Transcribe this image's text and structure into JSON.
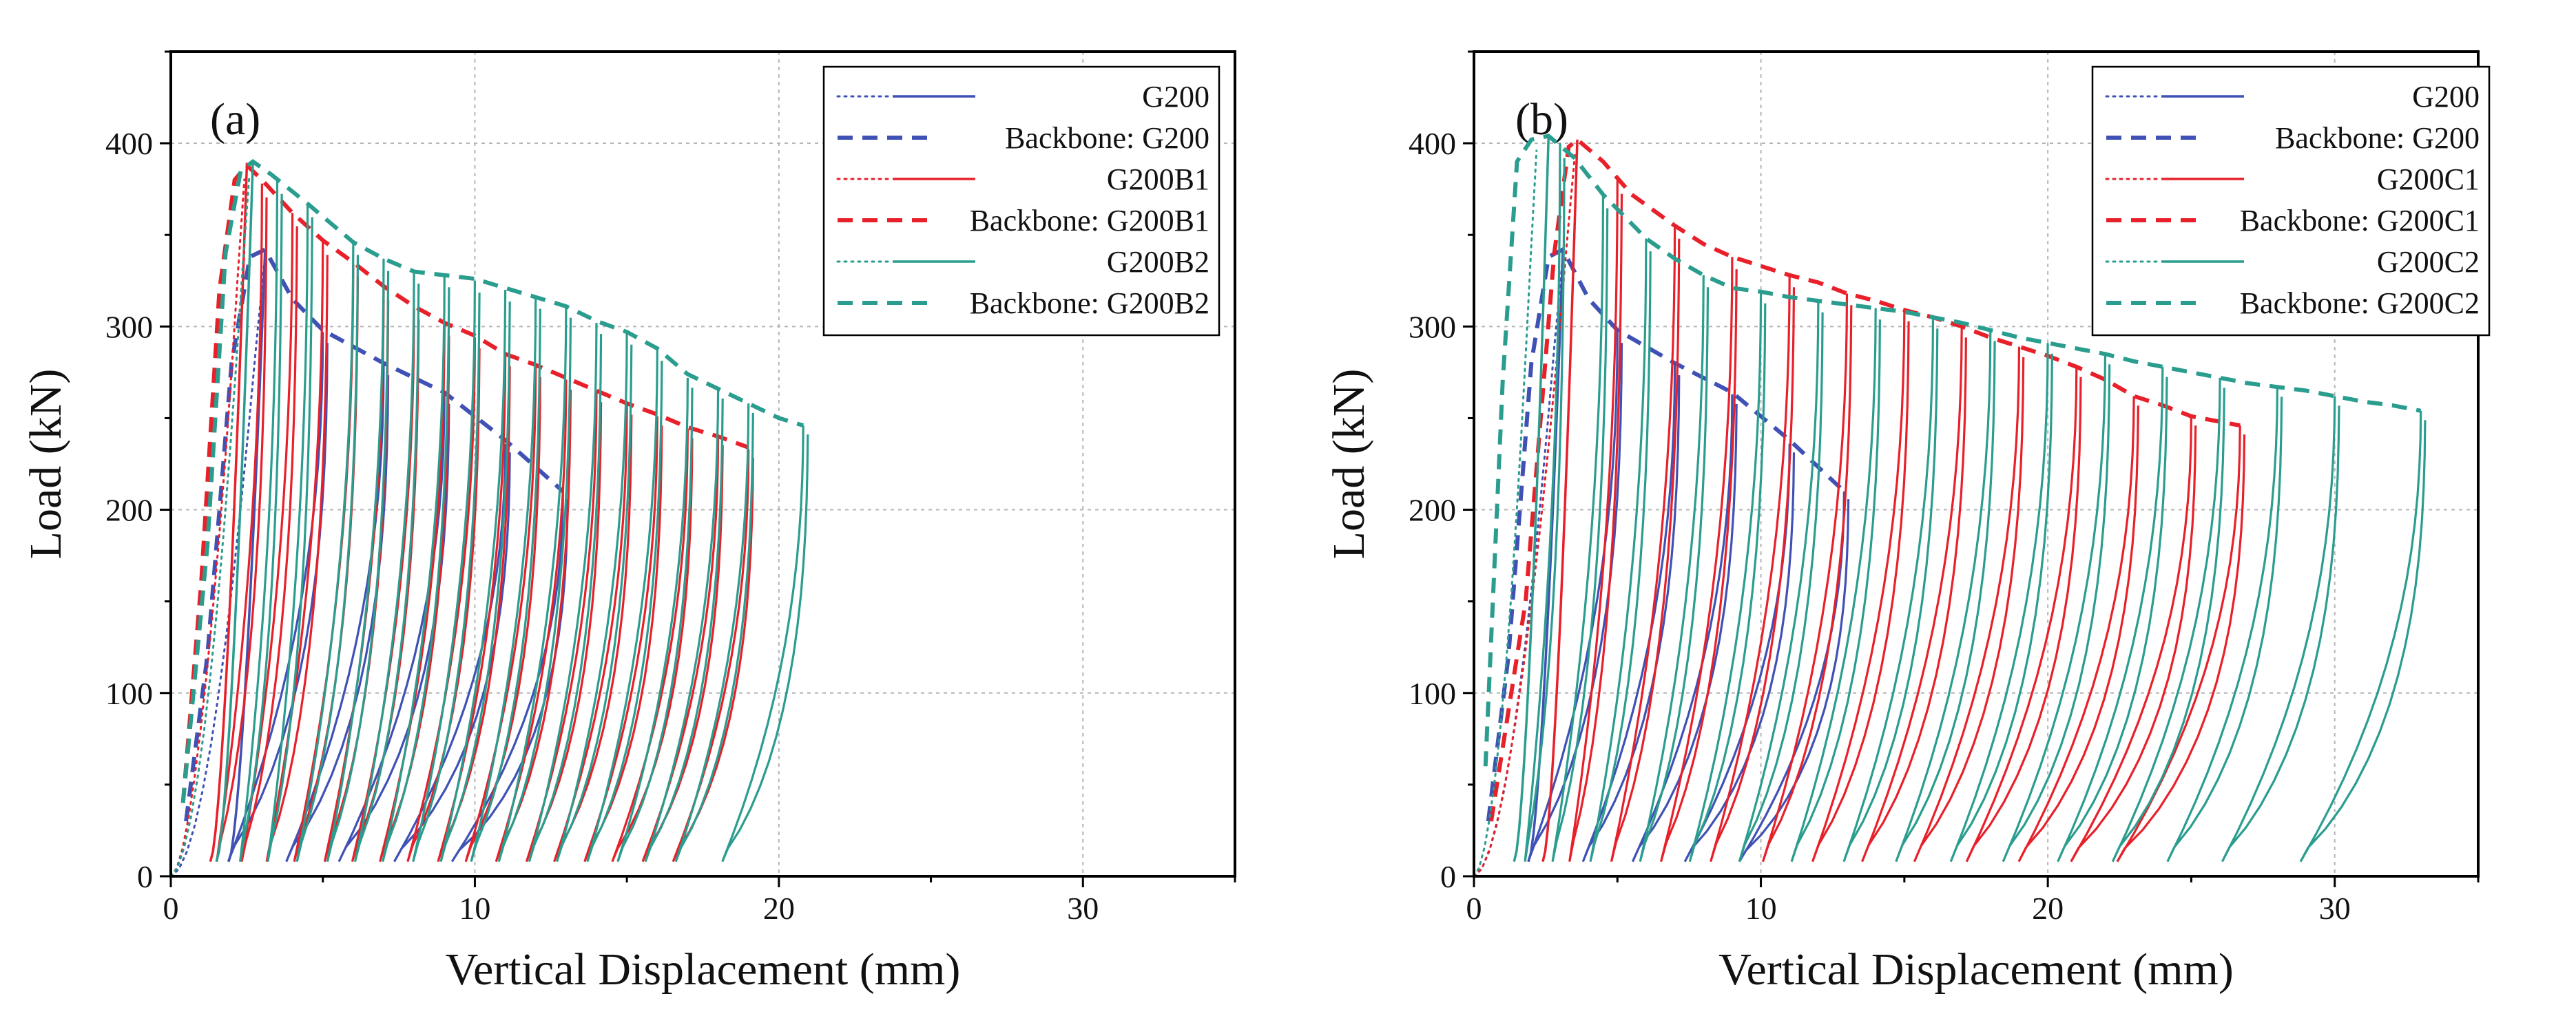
{
  "chart_data": [
    {
      "type": "line",
      "panel_label": "(a)",
      "xlabel": "Vertical Displacement (mm)",
      "ylabel": "Load (kN)",
      "xlim": [
        0,
        35
      ],
      "ylim": [
        0,
        450
      ],
      "xticks": [
        0,
        10,
        20,
        30
      ],
      "yticks": [
        0,
        100,
        200,
        300,
        400
      ],
      "grid": true,
      "legend_position": "top-right",
      "legend": [
        "G200",
        "Backbone: G200",
        "G200B1",
        "Backbone: G200B1",
        "G200B2",
        "Backbone: G200B2"
      ],
      "series": [
        {
          "name": "G200",
          "color": "#3f51b5",
          "monotonic_style": "dotted",
          "initial_max_disp": 3.1,
          "backbone": [
            [
              0.5,
              30
            ],
            [
              1.2,
              120
            ],
            [
              2.0,
              280
            ],
            [
              2.6,
              338
            ],
            [
              3.1,
              342
            ],
            [
              4.0,
              315
            ],
            [
              5.0,
              298
            ],
            [
              7.0,
              280
            ],
            [
              9.0,
              264
            ],
            [
              11.0,
              238
            ],
            [
              12.9,
              210
            ]
          ],
          "cycles": [
            {
              "d": 5.0,
              "load": 297,
              "end": 1.6
            },
            {
              "d": 7.0,
              "load": 279,
              "end": 3.5
            },
            {
              "d": 9.0,
              "load": 263,
              "end": 5.2
            },
            {
              "d": 11.0,
              "load": 236,
              "end": 7.0
            },
            {
              "d": 12.9,
              "load": 210,
              "end": 8.9
            }
          ]
        },
        {
          "name": "G200B1",
          "color": "#e8202a",
          "monotonic_style": "dotted",
          "initial_max_disp": 2.4,
          "backbone": [
            [
              0.4,
              40
            ],
            [
              1.0,
              160
            ],
            [
              1.6,
              320
            ],
            [
              2.1,
              380
            ],
            [
              2.5,
              388
            ],
            [
              3.0,
              380
            ],
            [
              4.0,
              362
            ],
            [
              5.0,
              347
            ],
            [
              6.0,
              335
            ],
            [
              7.0,
              322
            ],
            [
              8.0,
              311
            ],
            [
              9.0,
              302
            ],
            [
              10.0,
              295
            ],
            [
              11.0,
              285
            ],
            [
              12.0,
              279
            ],
            [
              13.0,
              272
            ],
            [
              14.0,
              265
            ],
            [
              15.0,
              258
            ],
            [
              16.0,
              252
            ],
            [
              17.0,
              245
            ],
            [
              18.0,
              240
            ],
            [
              19.0,
              234
            ]
          ],
          "cycles": [
            {
              "d": 3.0,
              "load": 378,
              "end": 1.4
            },
            {
              "d": 4.0,
              "load": 362,
              "end": 2.2
            },
            {
              "d": 5.0,
              "load": 346,
              "end": 3.0
            },
            {
              "d": 6.0,
              "load": 334,
              "end": 3.9
            },
            {
              "d": 7.0,
              "load": 321,
              "end": 4.9
            },
            {
              "d": 8.0,
              "load": 310,
              "end": 5.8
            },
            {
              "d": 9.0,
              "load": 301,
              "end": 6.7
            },
            {
              "d": 10.0,
              "load": 294,
              "end": 7.6
            },
            {
              "d": 11.0,
              "load": 284,
              "end": 8.6
            },
            {
              "d": 12.0,
              "load": 278,
              "end": 9.5
            },
            {
              "d": 13.0,
              "load": 271,
              "end": 10.5
            },
            {
              "d": 14.0,
              "load": 264,
              "end": 11.5
            },
            {
              "d": 15.0,
              "load": 257,
              "end": 12.4
            },
            {
              "d": 16.0,
              "load": 251,
              "end": 13.4
            },
            {
              "d": 17.0,
              "load": 244,
              "end": 14.3
            },
            {
              "d": 18.0,
              "load": 240,
              "end": 15.3
            },
            {
              "d": 19.0,
              "load": 233,
              "end": 16.3
            }
          ]
        },
        {
          "name": "G200B2",
          "color": "#2a9d8f",
          "monotonic_style": "dotted",
          "initial_max_disp": 2.6,
          "backbone": [
            [
              0.4,
              40
            ],
            [
              1.2,
              180
            ],
            [
              1.8,
              340
            ],
            [
              2.3,
              385
            ],
            [
              2.7,
              390
            ],
            [
              3.3,
              383
            ],
            [
              4.5,
              367
            ],
            [
              6.0,
              346
            ],
            [
              7.0,
              337
            ],
            [
              8.0,
              330
            ],
            [
              9.0,
              328
            ],
            [
              10.0,
              326
            ],
            [
              11.0,
              321
            ],
            [
              12.0,
              316
            ],
            [
              13.0,
              311
            ],
            [
              14.0,
              303
            ],
            [
              15.0,
              297
            ],
            [
              16.0,
              288
            ],
            [
              17.0,
              274
            ],
            [
              18.0,
              266
            ],
            [
              19.0,
              258
            ],
            [
              20.0,
              250
            ],
            [
              20.8,
              246
            ]
          ],
          "cycles": [
            {
              "d": 3.5,
              "load": 380,
              "end": 2.2
            },
            {
              "d": 4.5,
              "load": 367,
              "end": 3.1
            },
            {
              "d": 6.0,
              "load": 346,
              "end": 4.0
            },
            {
              "d": 7.0,
              "load": 337,
              "end": 5.0
            },
            {
              "d": 8.0,
              "load": 330,
              "end": 5.9
            },
            {
              "d": 9.0,
              "load": 328,
              "end": 6.8
            },
            {
              "d": 10.0,
              "load": 325,
              "end": 7.8
            },
            {
              "d": 11.0,
              "load": 320,
              "end": 8.7
            },
            {
              "d": 12.0,
              "load": 316,
              "end": 9.7
            },
            {
              "d": 13.0,
              "load": 311,
              "end": 10.6
            },
            {
              "d": 14.0,
              "load": 302,
              "end": 11.6
            },
            {
              "d": 15.0,
              "load": 296,
              "end": 12.5
            },
            {
              "d": 16.0,
              "load": 287,
              "end": 13.5
            },
            {
              "d": 17.0,
              "load": 272,
              "end": 14.5
            },
            {
              "d": 18.0,
              "load": 266,
              "end": 15.4
            },
            {
              "d": 19.0,
              "load": 258,
              "end": 16.4
            },
            {
              "d": 20.8,
              "load": 246,
              "end": 17.9
            }
          ]
        }
      ]
    },
    {
      "type": "line",
      "panel_label": "(b)",
      "xlabel": "Vertical Displacement (mm)",
      "ylabel": "Load (kN)",
      "xlim": [
        0,
        35
      ],
      "ylim": [
        0,
        450
      ],
      "xticks": [
        0,
        10,
        20,
        30
      ],
      "yticks": [
        0,
        100,
        200,
        300,
        400
      ],
      "grid": true,
      "legend_position": "top-right",
      "legend": [
        "G200",
        "Backbone: G200",
        "G200C1",
        "Backbone: G200C1",
        "G200C2",
        "Backbone: G200C2"
      ],
      "series": [
        {
          "name": "G200",
          "color": "#3f51b5",
          "monotonic_style": "dotted",
          "initial_max_disp": 3.1,
          "backbone": [
            [
              0.5,
              30
            ],
            [
              1.2,
              120
            ],
            [
              2.0,
              280
            ],
            [
              2.6,
              338
            ],
            [
              3.1,
              342
            ],
            [
              4.0,
              315
            ],
            [
              5.0,
              298
            ],
            [
              7.0,
              280
            ],
            [
              9.0,
              264
            ],
            [
              11.0,
              238
            ],
            [
              12.9,
              210
            ]
          ],
          "cycles": [
            {
              "d": 5.0,
              "load": 297,
              "end": 1.6
            },
            {
              "d": 7.0,
              "load": 279,
              "end": 3.5
            },
            {
              "d": 9.0,
              "load": 263,
              "end": 5.2
            },
            {
              "d": 11.0,
              "load": 236,
              "end": 7.0
            },
            {
              "d": 12.9,
              "load": 210,
              "end": 8.9
            }
          ]
        },
        {
          "name": "G200C1",
          "color": "#e8202a",
          "monotonic_style": "dotted",
          "initial_max_disp": 3.5,
          "backbone": [
            [
              0.6,
              30
            ],
            [
              1.8,
              150
            ],
            [
              2.8,
              340
            ],
            [
              3.3,
              398
            ],
            [
              3.6,
              402
            ],
            [
              4.5,
              390
            ],
            [
              5.5,
              372
            ],
            [
              7.0,
              355
            ],
            [
              8.0,
              345
            ],
            [
              9.0,
              338
            ],
            [
              10.0,
              333
            ],
            [
              11.0,
              328
            ],
            [
              12.0,
              324
            ],
            [
              13.0,
              318
            ],
            [
              14.0,
              314
            ],
            [
              15.0,
              309
            ],
            [
              16.0,
              305
            ],
            [
              17.0,
              300
            ],
            [
              18.0,
              294
            ],
            [
              19.0,
              289
            ],
            [
              20.0,
              284
            ],
            [
              21.0,
              278
            ],
            [
              22.0,
              271
            ],
            [
              23.0,
              262
            ],
            [
              24.0,
              257
            ],
            [
              25.0,
              251
            ],
            [
              26.7,
              246
            ]
          ],
          "cycles": [
            {
              "d": 5.0,
              "load": 380,
              "end": 3.2
            },
            {
              "d": 7.0,
              "load": 355,
              "end": 4.6
            },
            {
              "d": 9.0,
              "load": 338,
              "end": 6.3
            },
            {
              "d": 11.0,
              "load": 328,
              "end": 8.0
            },
            {
              "d": 13.0,
              "load": 318,
              "end": 9.8
            },
            {
              "d": 15.0,
              "load": 309,
              "end": 11.5
            },
            {
              "d": 17.0,
              "load": 300,
              "end": 13.2
            },
            {
              "d": 19.0,
              "load": 289,
              "end": 15.0
            },
            {
              "d": 21.0,
              "load": 278,
              "end": 16.8
            },
            {
              "d": 23.0,
              "load": 262,
              "end": 18.6
            },
            {
              "d": 25.0,
              "load": 251,
              "end": 20.4
            },
            {
              "d": 26.7,
              "load": 246,
              "end": 22.0
            }
          ]
        },
        {
          "name": "G200C2",
          "color": "#2a9d8f",
          "monotonic_style": "dotted",
          "initial_max_disp": 2.2,
          "backbone": [
            [
              0.4,
              60
            ],
            [
              1.0,
              270
            ],
            [
              1.5,
              390
            ],
            [
              2.0,
              402
            ],
            [
              2.6,
              404
            ],
            [
              3.5,
              392
            ],
            [
              4.5,
              372
            ],
            [
              6.0,
              348
            ],
            [
              7.0,
              337
            ],
            [
              8.0,
              328
            ],
            [
              9.0,
              321
            ],
            [
              10.0,
              319
            ],
            [
              11.0,
              316
            ],
            [
              12.0,
              314
            ],
            [
              13.0,
              312
            ],
            [
              14.0,
              310
            ],
            [
              15.0,
              308
            ],
            [
              16.0,
              305
            ],
            [
              17.0,
              302
            ],
            [
              18.0,
              298
            ],
            [
              19.0,
              294
            ],
            [
              20.0,
              291
            ],
            [
              21.0,
              288
            ],
            [
              22.0,
              285
            ],
            [
              23.0,
              281
            ],
            [
              24.0,
              278
            ],
            [
              25.0,
              275
            ],
            [
              26.0,
              272
            ],
            [
              27.0,
              269
            ],
            [
              28.0,
              267
            ],
            [
              29.0,
              265
            ],
            [
              30.0,
              262
            ],
            [
              31.0,
              259
            ],
            [
              32.0,
              257
            ],
            [
              33.0,
              254
            ]
          ],
          "cycles": [
            {
              "d": 3.0,
              "load": 400,
              "end": 1.7
            },
            {
              "d": 4.5,
              "load": 372,
              "end": 2.6
            },
            {
              "d": 6.0,
              "load": 348,
              "end": 3.9
            },
            {
              "d": 8.0,
              "load": 328,
              "end": 5.6
            },
            {
              "d": 10.0,
              "load": 319,
              "end": 7.3
            },
            {
              "d": 12.0,
              "load": 314,
              "end": 9.0
            },
            {
              "d": 14.0,
              "load": 310,
              "end": 10.8
            },
            {
              "d": 16.0,
              "load": 305,
              "end": 12.6
            },
            {
              "d": 18.0,
              "load": 298,
              "end": 14.4
            },
            {
              "d": 20.0,
              "load": 291,
              "end": 16.3
            },
            {
              "d": 22.0,
              "load": 285,
              "end": 18.1
            },
            {
              "d": 24.0,
              "load": 278,
              "end": 20.0
            },
            {
              "d": 26.0,
              "load": 272,
              "end": 21.9
            },
            {
              "d": 28.0,
              "load": 267,
              "end": 23.8
            },
            {
              "d": 30.0,
              "load": 262,
              "end": 25.7
            },
            {
              "d": 33.0,
              "load": 254,
              "end": 28.4
            }
          ]
        }
      ]
    }
  ]
}
